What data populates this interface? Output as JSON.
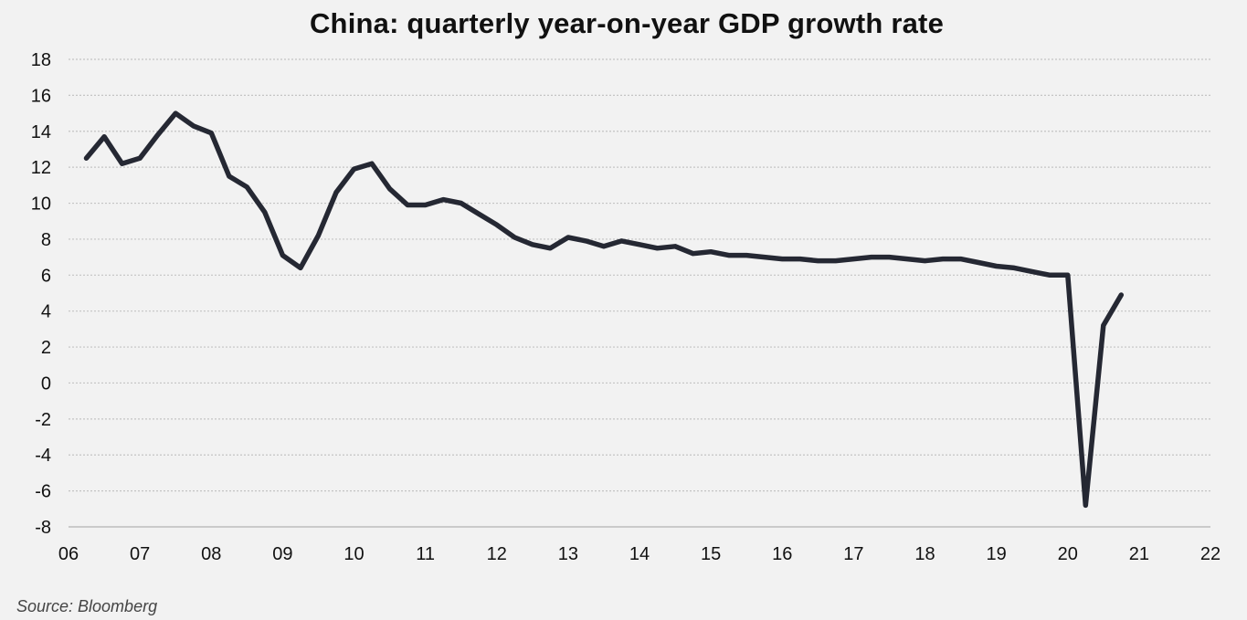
{
  "chart_data": {
    "type": "line",
    "title": "China: quarterly year-on-year GDP growth rate",
    "xlabel": "",
    "ylabel": "",
    "ylim": [
      -8,
      18
    ],
    "yticks": [
      18,
      16,
      14,
      12,
      10,
      8,
      6,
      4,
      2,
      0,
      -2,
      -4,
      -6,
      -8
    ],
    "xticks": [
      "06",
      "07",
      "08",
      "09",
      "10",
      "11",
      "12",
      "13",
      "14",
      "15",
      "16",
      "17",
      "18",
      "19",
      "20",
      "21",
      "22"
    ],
    "grid": "horizontal dotted",
    "line_color": "#252833",
    "series": [
      {
        "x": [
          2006.25,
          2006.5,
          2006.75,
          2007.0,
          2007.25,
          2007.5,
          2007.75,
          2008.0,
          2008.25,
          2008.5,
          2008.75,
          2009.0,
          2009.25,
          2009.5,
          2009.75,
          2010.0,
          2010.25,
          2010.5,
          2010.75,
          2011.0,
          2011.25,
          2011.5,
          2011.75,
          2012.0,
          2012.25,
          2012.5,
          2012.75,
          2013.0,
          2013.25,
          2013.5,
          2013.75,
          2014.0,
          2014.25,
          2014.5,
          2014.75,
          2015.0,
          2015.25,
          2015.5,
          2015.75,
          2016.0,
          2016.25,
          2016.5,
          2016.75,
          2017.0,
          2017.25,
          2017.5,
          2017.75,
          2018.0,
          2018.25,
          2018.5,
          2018.75,
          2019.0,
          2019.25,
          2019.5,
          2019.75,
          2020.0,
          2020.25,
          2020.5,
          2020.75
        ],
        "values": [
          12.5,
          13.7,
          12.2,
          12.5,
          13.8,
          15.0,
          14.3,
          13.9,
          11.5,
          10.9,
          9.5,
          7.1,
          6.4,
          8.2,
          10.6,
          11.9,
          12.2,
          10.8,
          9.9,
          9.9,
          10.2,
          10.0,
          9.4,
          8.8,
          8.1,
          7.7,
          7.5,
          8.1,
          7.9,
          7.6,
          7.9,
          7.7,
          7.5,
          7.6,
          7.2,
          7.3,
          7.1,
          7.1,
          7.0,
          6.9,
          6.9,
          6.8,
          6.8,
          6.9,
          7.0,
          7.0,
          6.9,
          6.8,
          6.9,
          6.9,
          6.7,
          6.5,
          6.4,
          6.2,
          6.0,
          6.0,
          -6.8,
          3.2,
          4.9
        ]
      }
    ]
  },
  "footer": {
    "source": "Source: Bloomberg"
  }
}
